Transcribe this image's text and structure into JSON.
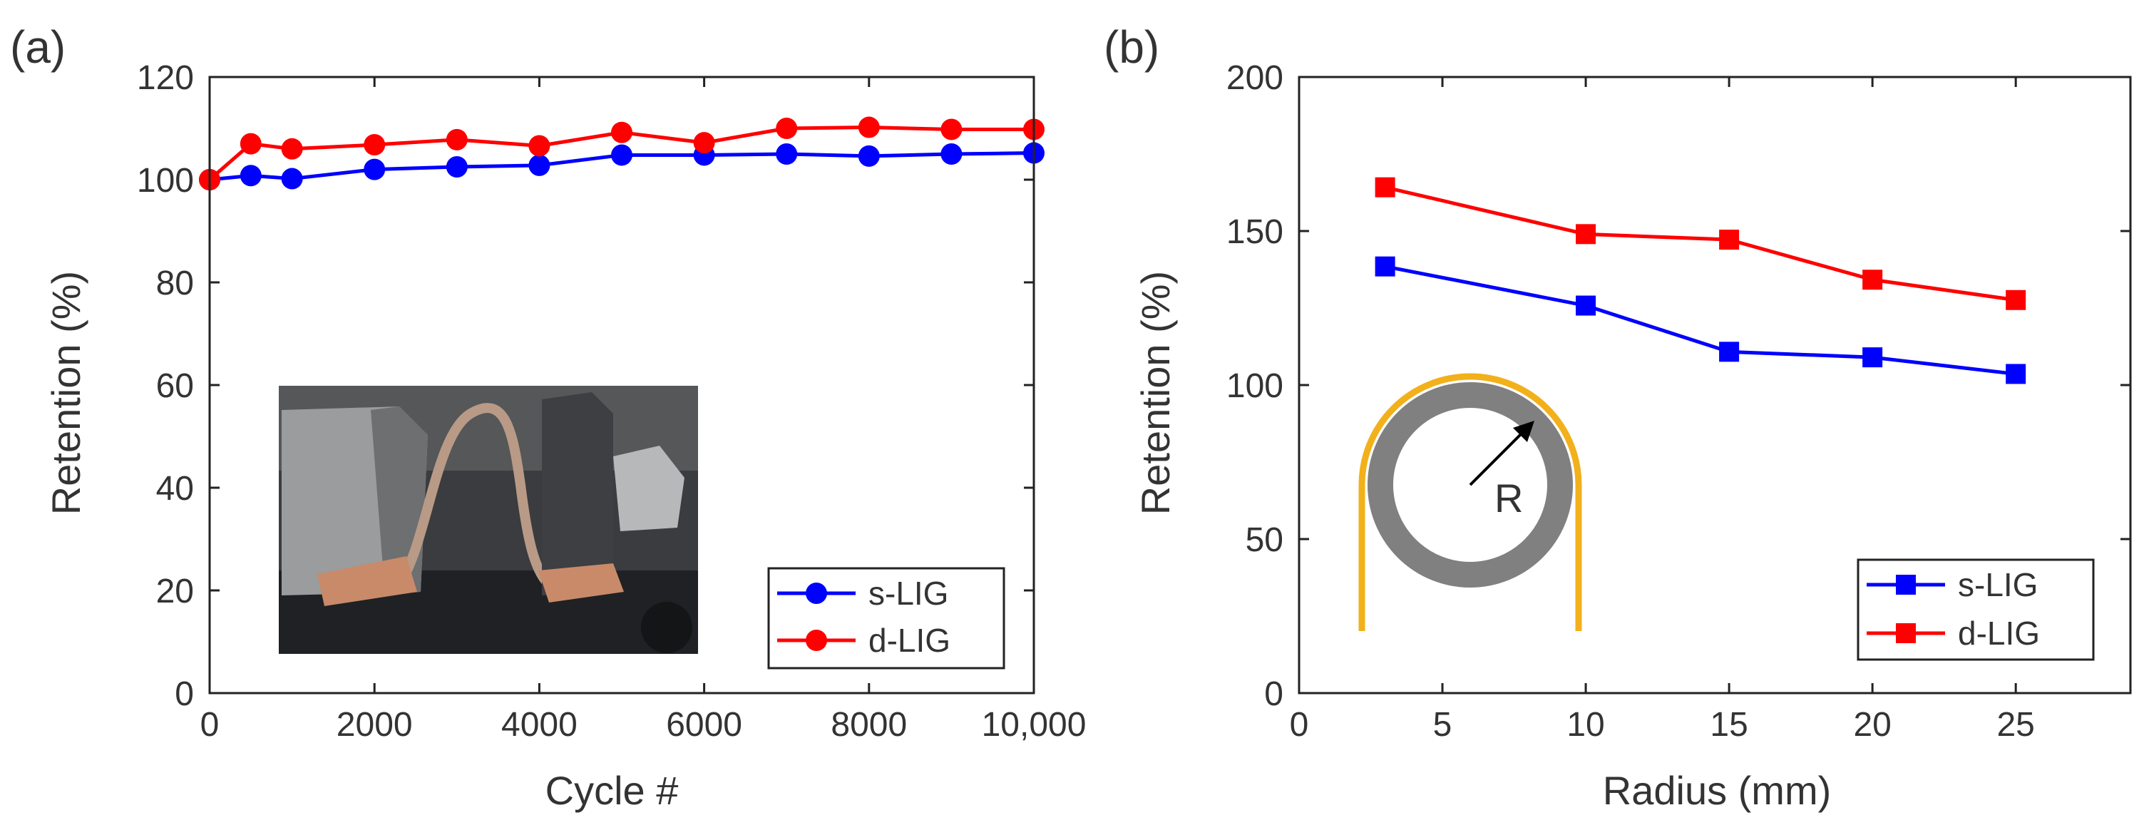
{
  "colors": {
    "s_lig": "#0000ff",
    "d_lig": "#ff0000",
    "copper": "#c98a6a",
    "ring": "#808080",
    "foil": "#f2b01a"
  },
  "chart_data": [
    {
      "panel": "(a)",
      "type": "line",
      "marker": "circle",
      "xlabel": "Cycle #",
      "ylabel": "Retention (%)",
      "xlim": [
        0,
        10000
      ],
      "ylim": [
        0,
        120
      ],
      "xticks": [
        0,
        2000,
        4000,
        6000,
        8000,
        10000
      ],
      "xtick_labels": [
        "0",
        "2000",
        "4000",
        "6000",
        "8000",
        "10,000"
      ],
      "yticks": [
        0,
        20,
        40,
        60,
        80,
        100,
        120
      ],
      "ytick_labels": [
        "0",
        "20",
        "40",
        "60",
        "80",
        "100",
        "120"
      ],
      "legend_position": "bottom-right",
      "x": [
        0,
        500,
        1000,
        2000,
        3000,
        4000,
        5000,
        6000,
        7000,
        8000,
        9000,
        10000
      ],
      "series": [
        {
          "name": "s-LIG",
          "color": "#0000ff",
          "values": [
            100,
            100.8,
            100.2,
            102,
            102.5,
            102.8,
            104.8,
            104.8,
            105,
            104.6,
            105,
            105.2
          ]
        },
        {
          "name": "d-LIG",
          "color": "#ff0000",
          "values": [
            100,
            107,
            106,
            106.8,
            107.8,
            106.6,
            109.2,
            107.2,
            110,
            110.2,
            109.8,
            109.8
          ]
        }
      ],
      "inset": "photo of bending test fixture with flexible sample"
    },
    {
      "panel": "(b)",
      "type": "line",
      "marker": "square",
      "xlabel": "Radius (mm)",
      "ylabel": "Retention (%)",
      "xlim": [
        0,
        29
      ],
      "ylim": [
        0,
        200
      ],
      "xticks": [
        0,
        5,
        10,
        15,
        20,
        25
      ],
      "xtick_labels": [
        "0",
        "5",
        "10",
        "15",
        "20",
        "25"
      ],
      "yticks": [
        0,
        50,
        100,
        150,
        200
      ],
      "ytick_labels": [
        "0",
        "50",
        "100",
        "150",
        "200"
      ],
      "legend_position": "bottom-right",
      "x": [
        3,
        10,
        15,
        20,
        25
      ],
      "series": [
        {
          "name": "s-LIG",
          "color": "#0000ff",
          "values": [
            138.5,
            125.8,
            110.8,
            109,
            103.6
          ]
        },
        {
          "name": "d-LIG",
          "color": "#ff0000",
          "values": [
            164.2,
            149,
            147.2,
            134.2,
            127.6
          ]
        }
      ],
      "inset_label": "R"
    }
  ]
}
